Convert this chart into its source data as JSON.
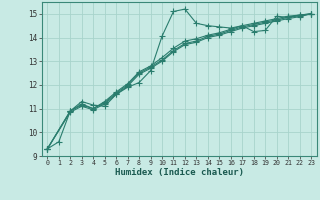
{
  "xlabel": "Humidex (Indice chaleur)",
  "ylabel": "",
  "background_color": "#c8eae4",
  "grid_color": "#a8d4cc",
  "line_color": "#2a7d6e",
  "xlim": [
    -0.5,
    23.5
  ],
  "ylim": [
    9,
    15.5
  ],
  "yticks": [
    9,
    10,
    11,
    12,
    13,
    14,
    15
  ],
  "xticks": [
    0,
    1,
    2,
    3,
    4,
    5,
    6,
    7,
    8,
    9,
    10,
    11,
    12,
    13,
    14,
    15,
    16,
    17,
    18,
    19,
    20,
    21,
    22,
    23
  ],
  "series": [
    {
      "x": [
        0,
        1,
        2,
        3,
        4,
        5,
        6,
        7,
        8,
        9,
        10,
        11,
        12,
        13,
        14,
        15,
        16,
        17,
        18,
        19,
        20,
        21,
        22,
        23
      ],
      "y": [
        9.3,
        9.6,
        10.9,
        11.3,
        11.15,
        11.1,
        11.6,
        11.9,
        12.1,
        12.6,
        14.05,
        15.1,
        15.2,
        14.6,
        14.5,
        14.45,
        14.4,
        14.5,
        14.25,
        14.3,
        14.9,
        14.85,
        14.95,
        15.0
      ]
    },
    {
      "x": [
        0,
        2,
        3,
        4,
        5,
        6,
        7,
        8,
        9,
        10,
        11,
        12,
        13,
        14,
        15,
        16,
        17,
        18,
        19,
        20,
        21,
        22,
        23
      ],
      "y": [
        9.3,
        10.9,
        11.2,
        11.0,
        11.3,
        11.7,
        12.05,
        12.55,
        12.8,
        13.15,
        13.55,
        13.85,
        13.95,
        14.1,
        14.2,
        14.35,
        14.5,
        14.6,
        14.7,
        14.8,
        14.9,
        14.95,
        15.0
      ]
    },
    {
      "x": [
        0,
        2,
        3,
        4,
        5,
        6,
        7,
        8,
        9,
        10,
        11,
        12,
        13,
        14,
        15,
        16,
        17,
        18,
        19,
        20,
        21,
        22,
        23
      ],
      "y": [
        9.3,
        10.9,
        11.15,
        11.0,
        11.25,
        11.65,
        12.0,
        12.5,
        12.75,
        13.05,
        13.45,
        13.75,
        13.85,
        14.05,
        14.15,
        14.3,
        14.45,
        14.55,
        14.65,
        14.75,
        14.85,
        14.92,
        15.0
      ]
    },
    {
      "x": [
        0,
        2,
        3,
        4,
        5,
        6,
        7,
        8,
        9,
        10,
        11,
        12,
        13,
        14,
        15,
        16,
        17,
        18,
        19,
        20,
        21,
        22,
        23
      ],
      "y": [
        9.3,
        10.85,
        11.1,
        10.95,
        11.2,
        11.6,
        11.95,
        12.45,
        12.7,
        13.0,
        13.4,
        13.7,
        13.8,
        14.0,
        14.1,
        14.25,
        14.4,
        14.5,
        14.6,
        14.7,
        14.8,
        14.88,
        15.0
      ]
    }
  ]
}
